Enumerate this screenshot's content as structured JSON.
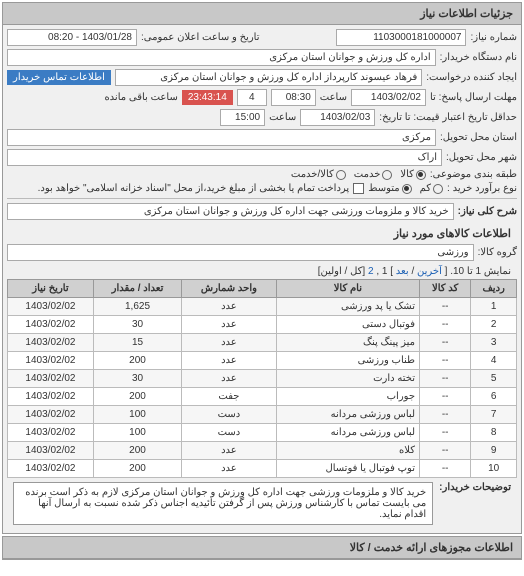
{
  "panel": {
    "title": "جزئیات اطلاعات نیاز"
  },
  "header": {
    "req_no_label": "شماره نیاز:",
    "req_no": "1103000181000007",
    "announce_label": "تاریخ و ساعت اعلان عمومی:",
    "announce_value": "1403/01/28 - 08:20",
    "buyer_label": "نام دستگاه خریدار:",
    "buyer_value": "اداره کل ورزش و جوانان استان مرکزی",
    "requester_label": "ایجاد کننده درخواست:",
    "requester_value": "فرهاد عیسوند کارپرداز اداره کل ورزش و جوانان استان مرکزی",
    "contact_btn": "اطلاعات تماس خریدار",
    "deadline_send_label": "مهلت ارسال پاسخ: تا",
    "deadline_send_date": "1403/02/02",
    "deadline_send_time_label": "ساعت",
    "deadline_send_time": "08:30",
    "countdown_days": "4",
    "countdown_time": "23:43:14",
    "countdown_suffix": "ساعت باقی مانده",
    "valid_label": "حداقل تاریخ اعتبار قیمت: تا تاریخ:",
    "valid_date": "1403/02/03",
    "valid_time_label": "ساعت",
    "valid_time": "15:00",
    "deliver_prov_label": "استان محل تحویل:",
    "deliver_prov": "مرکزی",
    "deliver_city_label": "شهر محل تحویل:",
    "deliver_city": "اراک",
    "class_label": "طبقه بندی موضوعی:",
    "radio_goods": "کالا",
    "radio_service": "خدمت",
    "radio_goods_service": "کالا/خدمت",
    "pay_label": "نوع برآورد خرید :",
    "radio_low": "کم",
    "radio_mid": "متوسط",
    "pay_note_check_label": "پرداخت تمام یا بخشی از مبلغ خرید،از محل \"اسناد خزانه اسلامی\" خواهد بود."
  },
  "subject": {
    "label": "شرح کلی نیاز:",
    "value": "خرید کالا و ملزومات ورزشی جهت اداره کل ورزش و جوانان استان مرکزی"
  },
  "goods": {
    "section_title": "اطلاعات کالاهای مورد نیاز",
    "group_label": "گروه کالا:",
    "group_value": "ورزشی",
    "pager_text_a": "نمایش 1 تا 10. [",
    "pager_prev": "آخرین",
    "pager_sep": "/",
    "pager_next": "بعد",
    "pager_text_b": "] 1 ,",
    "pager_link2": "2",
    "pager_text_c": "[کل / اولین]",
    "columns": {
      "row": "ردیف",
      "code": "کد کالا",
      "name": "نام کالا",
      "unit": "واحد شمارش",
      "qty": "تعداد / مقدار",
      "date": "تاریخ نیاز"
    },
    "rows": [
      {
        "n": "1",
        "code": "--",
        "name": "تشک یا پد ورزشی",
        "unit": "عدد",
        "qty": "1,625",
        "date": "1403/02/02"
      },
      {
        "n": "2",
        "code": "--",
        "name": "فوتبال دستی",
        "unit": "عدد",
        "qty": "30",
        "date": "1403/02/02"
      },
      {
        "n": "3",
        "code": "--",
        "name": "میز پینگ پنگ",
        "unit": "عدد",
        "qty": "15",
        "date": "1403/02/02"
      },
      {
        "n": "4",
        "code": "--",
        "name": "طناب ورزشی",
        "unit": "عدد",
        "qty": "200",
        "date": "1403/02/02"
      },
      {
        "n": "5",
        "code": "--",
        "name": "تخته دارت",
        "unit": "عدد",
        "qty": "30",
        "date": "1403/02/02"
      },
      {
        "n": "6",
        "code": "--",
        "name": "جوراب",
        "unit": "جفت",
        "qty": "200",
        "date": "1403/02/02"
      },
      {
        "n": "7",
        "code": "--",
        "name": "لباس ورزشی مردانه",
        "unit": "دست",
        "qty": "100",
        "date": "1403/02/02"
      },
      {
        "n": "8",
        "code": "--",
        "name": "لباس ورزشی مردانه",
        "unit": "دست",
        "qty": "100",
        "date": "1403/02/02"
      },
      {
        "n": "9",
        "code": "--",
        "name": "کلاه",
        "unit": "عدد",
        "qty": "200",
        "date": "1403/02/02"
      },
      {
        "n": "10",
        "code": "--",
        "name": "توپ فوتبال یا فوتسال",
        "unit": "عدد",
        "qty": "200",
        "date": "1403/02/02"
      }
    ]
  },
  "final": {
    "label": "توضیحات خریدار:",
    "text": "خرید کالا و ملزومات ورزشی جهت اداره کل ورزش و جوانان استان مرکزی لازم به ذکر است برنده می بایست تماس با کارشناس ورزش پس از گرفتن تائیدیه اجناس ذکر شده نسبت به ارسال آنها اقدام نماید."
  },
  "footer": {
    "title": "اطلاعات مجوزهای ارائه خدمت / کالا"
  }
}
